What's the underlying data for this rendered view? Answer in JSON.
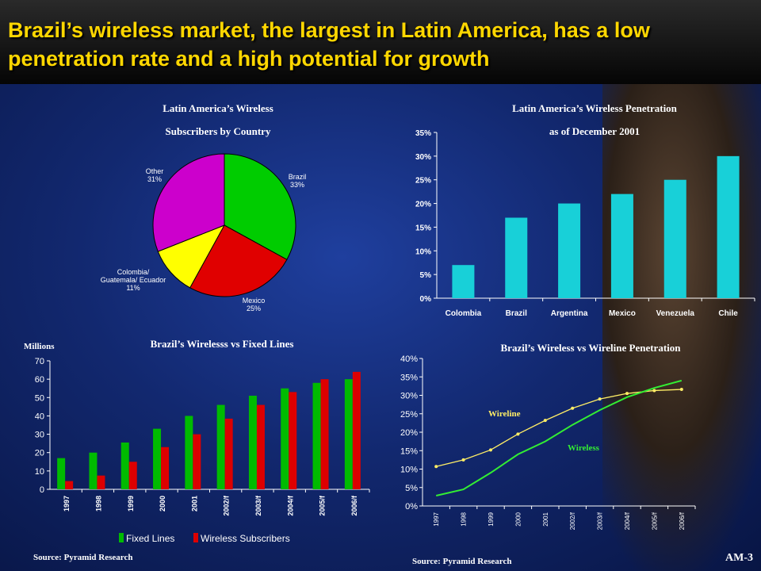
{
  "title": "Brazil’s wireless market, the largest in Latin America, has a low penetration rate and a high potential for growth",
  "page_number": "AM-3",
  "colors": {
    "title": "#ffd700",
    "background": "#12286f"
  },
  "chart_data": [
    {
      "type": "pie",
      "title_line1": "Latin America’s Wireless",
      "title_line2": "Subscribers by Country",
      "slices": [
        {
          "label_line1": "Brazil",
          "label_line2": "33%",
          "value": 33,
          "color": "#00cc00"
        },
        {
          "label_line1": "Mexico",
          "label_line2": "25%",
          "value": 25,
          "color": "#e00000"
        },
        {
          "label_line1": "Colombia/",
          "label_line2": "Guatemala/ Ecuador",
          "label_line3": "11%",
          "value": 11,
          "color": "#ffff00"
        },
        {
          "label_line1": "Other",
          "label_line2": "31%",
          "value": 31,
          "color": "#cc00cc"
        }
      ]
    },
    {
      "type": "bar",
      "title_line1": "Latin America’s Wireless Penetration",
      "title_line2": "as of December 2001",
      "categories": [
        "Colombia",
        "Brazil",
        "Argentina",
        "Mexico",
        "Venezuela",
        "Chile"
      ],
      "values": [
        7,
        17,
        20,
        22,
        25,
        30
      ],
      "ylim": [
        0,
        35
      ],
      "yticks": [
        "0%",
        "5%",
        "10%",
        "15%",
        "20%",
        "25%",
        "30%",
        "35%"
      ],
      "color": "#18d0d8"
    },
    {
      "type": "bar",
      "title": "Brazil’s Wirelesss vs Fixed Lines",
      "ylabel": "Millions",
      "categories": [
        "1997",
        "1998",
        "1999",
        "2000",
        "2001",
        "2002/f",
        "2003/f",
        "2004/f",
        "2005/f",
        "2006/f"
      ],
      "ylim": [
        0,
        70
      ],
      "yticks": [
        "0",
        "10",
        "20",
        "30",
        "40",
        "50",
        "60",
        "70"
      ],
      "series": [
        {
          "name": "Fixed Lines",
          "values": [
            17,
            20,
            25.5,
            33,
            40,
            46,
            51,
            55,
            58,
            60
          ],
          "color": "#00bb00"
        },
        {
          "name": "Wireless Subscribers",
          "values": [
            4.5,
            7.5,
            15,
            23,
            30,
            38.5,
            46,
            53,
            60,
            64
          ],
          "color": "#dd0000"
        }
      ],
      "source": "Source: Pyramid Research"
    },
    {
      "type": "line",
      "title": "Brazil’s Wireless vs Wireline Penetration",
      "categories": [
        "1997",
        "1998",
        "1999",
        "2000",
        "2001",
        "2002/f",
        "2003/f",
        "2004/f",
        "2005/f",
        "2006/f"
      ],
      "ylim": [
        0,
        40
      ],
      "yticks": [
        "0%",
        "5%",
        "10%",
        "15%",
        "20%",
        "25%",
        "30%",
        "35%",
        "40%"
      ],
      "series": [
        {
          "name": "Wireline",
          "values": [
            10.7,
            12.5,
            15.2,
            19.5,
            23.2,
            26.5,
            29,
            30.5,
            31.3,
            31.6
          ],
          "color": "#ffee66"
        },
        {
          "name": "Wireless",
          "values": [
            2.8,
            4.5,
            9,
            14,
            17.5,
            22,
            26,
            29.5,
            32,
            34
          ],
          "color": "#33ee33"
        }
      ],
      "source": "Source: Pyramid Research"
    }
  ]
}
